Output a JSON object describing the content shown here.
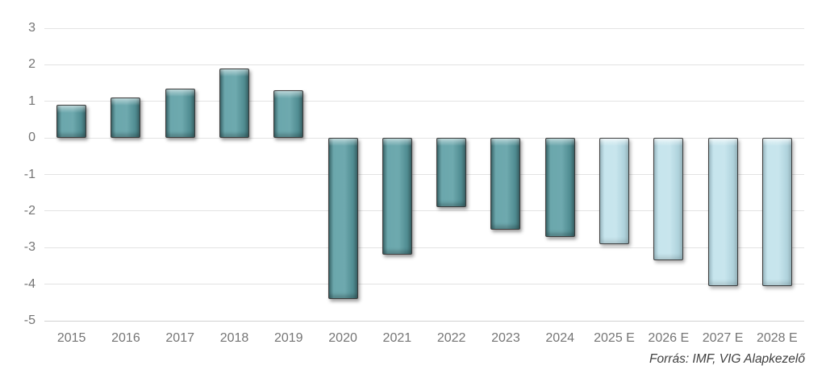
{
  "chart_data": {
    "type": "bar",
    "title": "",
    "xlabel": "",
    "ylabel": "",
    "categories": [
      "2015",
      "2016",
      "2017",
      "2018",
      "2019",
      "2020",
      "2021",
      "2022",
      "2023",
      "2024",
      "2025 E",
      "2026 E",
      "2027 E",
      "2028 E"
    ],
    "values": [
      0.9,
      1.1,
      1.35,
      1.9,
      1.3,
      -4.4,
      -3.2,
      -1.9,
      -2.5,
      -2.7,
      -2.9,
      -3.35,
      -4.05,
      -4.05
    ],
    "bar_styles": [
      "actual",
      "actual",
      "actual",
      "actual",
      "actual",
      "actual",
      "actual",
      "actual",
      "actual",
      "actual",
      "estimate",
      "estimate",
      "estimate",
      "estimate"
    ],
    "yticks": [
      3,
      2,
      1,
      0,
      -1,
      -2,
      -3,
      -4,
      -5
    ],
    "ylim": [
      -5,
      3
    ],
    "grid": true,
    "legend_position": "none",
    "colors": {
      "actual": "#5A9DA3",
      "estimate": "#BADFE9"
    },
    "tick_label_color": "#757575",
    "gridline_color": "#E3E3E3"
  },
  "source_note": "Forrás: IMF, VIG Alapkezelő"
}
